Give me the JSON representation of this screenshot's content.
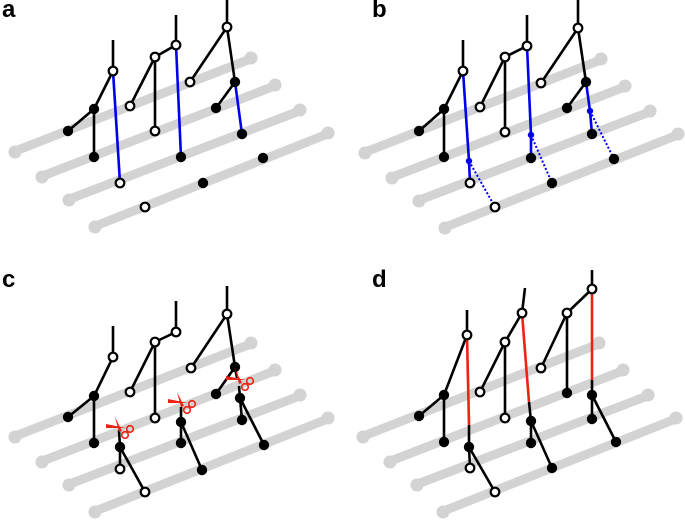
{
  "panels": [
    {
      "label": "a"
    },
    {
      "label": "b"
    },
    {
      "label": "c"
    },
    {
      "label": "d"
    }
  ],
  "colors": {
    "chromosome": "#d3d3d3",
    "lineage": "#000000",
    "highlight_blue": "#0000ee",
    "cut_red": "#ee2211"
  }
}
